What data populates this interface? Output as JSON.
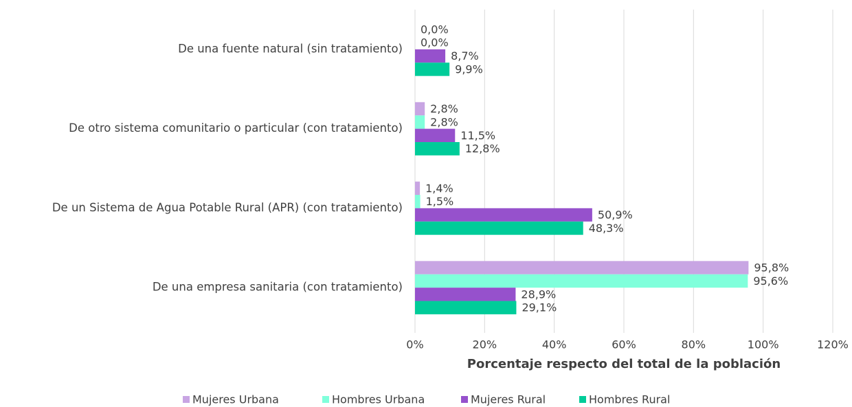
{
  "chart_data": {
    "type": "hbar",
    "x_label": "Porcentaje respecto del total de la población",
    "categories": [
      "De una fuente natural (sin tratamiento)",
      "De otro sistema comunitario o particular (con tratamiento)",
      "De un Sistema de Agua Potable Rural (APR) (con tratamiento)",
      "De una empresa sanitaria (con tratamiento)"
    ],
    "series": [
      {
        "name": "Mujeres Urbana",
        "color": "#c8a5e3",
        "values": [
          0.0,
          2.8,
          1.4,
          95.8
        ],
        "value_labels": [
          "0,0%",
          "2,8%",
          "1,4%",
          "95,8%"
        ]
      },
      {
        "name": "Hombres Urbana",
        "color": "#80ffdb",
        "values": [
          0.0,
          2.8,
          1.5,
          95.6
        ],
        "value_labels": [
          "0,0%",
          "2,8%",
          "1,5%",
          "95,6%"
        ]
      },
      {
        "name": "Mujeres Rural",
        "color": "#9651cc",
        "values": [
          8.7,
          11.5,
          50.9,
          28.9
        ],
        "value_labels": [
          "8,7%",
          "11,5%",
          "50,9%",
          "28,9%"
        ]
      },
      {
        "name": "Hombres Rural",
        "color": "#00cc99",
        "values": [
          9.9,
          12.8,
          48.3,
          29.1
        ],
        "value_labels": [
          "9,9%",
          "12,8%",
          "48,3%",
          "29,1%"
        ]
      }
    ],
    "xlim": [
      0,
      120
    ],
    "xticks": [
      {
        "value": 0,
        "label": "0%"
      },
      {
        "value": 20,
        "label": "20%"
      },
      {
        "value": 40,
        "label": "40%"
      },
      {
        "value": 60,
        "label": "60%"
      },
      {
        "value": 80,
        "label": "80%"
      },
      {
        "value": 100,
        "label": "100%"
      },
      {
        "value": 120,
        "label": "120%"
      }
    ],
    "grid": true,
    "legend": "bottom"
  }
}
